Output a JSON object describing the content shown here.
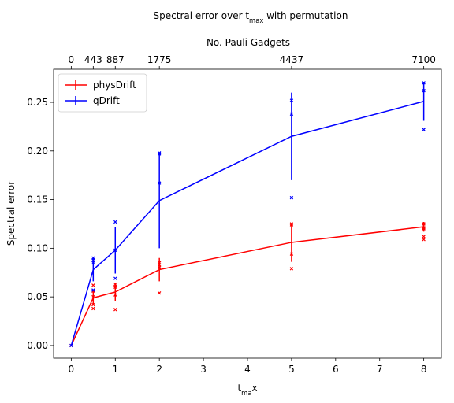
{
  "chart_data": {
    "type": "line",
    "title": [
      {
        "text": "Spectral error over "
      },
      {
        "text": "t"
      },
      {
        "text": "max",
        "sub": true
      },
      {
        "text": " with permutation"
      }
    ],
    "xlabel": [
      {
        "text": "t"
      },
      {
        "text": "ma",
        "sub": true
      },
      {
        "text": "x"
      }
    ],
    "ylabel": "Spectral error",
    "x2label": "No. Pauli Gadgets",
    "x": [
      0,
      0.5,
      1,
      2,
      5,
      8
    ],
    "series": [
      {
        "name": "physDrift",
        "color": "#ff0000",
        "values": [
          0,
          0.049,
          0.055,
          0.078,
          0.106,
          0.122
        ],
        "errors": [
          0,
          0.007,
          0.009,
          0.012,
          0.02,
          0.005
        ],
        "samples_x": [
          0,
          0.5,
          0.5,
          0.5,
          0.5,
          0.5,
          1,
          1,
          1,
          1,
          2,
          2,
          2,
          2,
          5,
          5,
          5,
          5,
          8,
          8,
          8,
          8,
          8
        ],
        "samples_y": [
          0,
          0.038,
          0.042,
          0.05,
          0.056,
          0.062,
          0.037,
          0.052,
          0.06,
          0.063,
          0.054,
          0.08,
          0.083,
          0.085,
          0.079,
          0.094,
          0.124,
          0.125,
          0.109,
          0.112,
          0.12,
          0.121,
          0.125
        ]
      },
      {
        "name": "qDrift",
        "color": "#0000ff",
        "values": [
          0,
          0.078,
          0.098,
          0.149,
          0.215,
          0.251
        ],
        "errors": [
          0,
          0.012,
          0.024,
          0.049,
          0.045,
          0.02
        ],
        "samples_x": [
          0,
          0.5,
          0.5,
          0.5,
          0.5,
          1,
          1,
          1,
          2,
          2,
          2,
          5,
          5,
          5,
          8,
          8,
          8
        ],
        "samples_y": [
          0,
          0.057,
          0.085,
          0.088,
          0.09,
          0.069,
          0.098,
          0.127,
          0.167,
          0.197,
          0.198,
          0.152,
          0.238,
          0.252,
          0.222,
          0.262,
          0.27
        ]
      }
    ],
    "xlim": [
      -0.4,
      8.4
    ],
    "ylim": [
      -0.013,
      0.284
    ],
    "xticks": [
      0,
      1,
      2,
      3,
      4,
      5,
      6,
      7,
      8
    ],
    "yticks": [
      {
        "value": 0,
        "label": "0.00"
      },
      {
        "value": 0.05,
        "label": "0.05"
      },
      {
        "value": 0.1,
        "label": "0.10"
      },
      {
        "value": 0.15,
        "label": "0.15"
      },
      {
        "value": 0.2,
        "label": "0.20"
      },
      {
        "value": 0.25,
        "label": "0.25"
      }
    ],
    "x2ticks": [
      {
        "value": 0,
        "label": "0"
      },
      {
        "value": 0.5,
        "label": "443"
      },
      {
        "value": 1,
        "label": "887"
      },
      {
        "value": 2,
        "label": "1775"
      },
      {
        "value": 5,
        "label": "4437"
      },
      {
        "value": 8,
        "label": "7100"
      }
    ],
    "legend": "upper left"
  }
}
